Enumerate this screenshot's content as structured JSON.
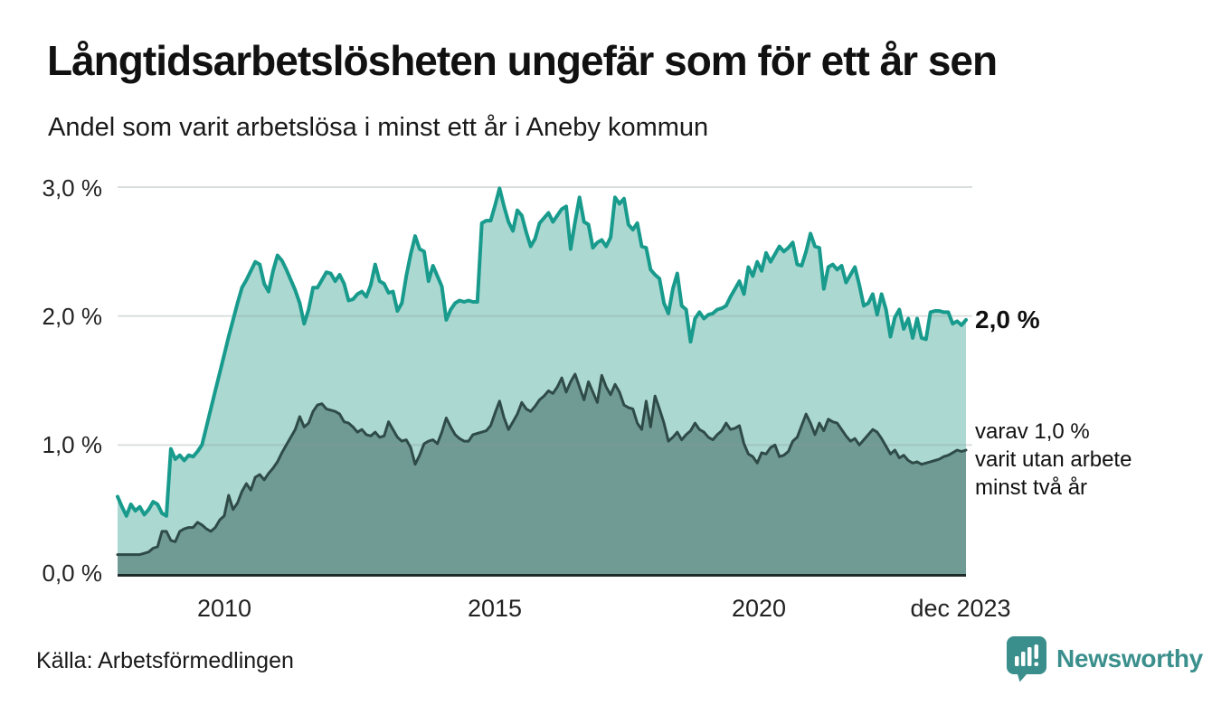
{
  "header": {
    "title": "Långtidsarbetslösheten ungefär som för ett år sen",
    "subtitle": "Andel som varit arbetslösa i minst ett år i Aneby kommun"
  },
  "chart_data": {
    "type": "area",
    "title": "Långtidsarbetslösheten ungefär som för ett år sen",
    "subtitle": "Andel som varit arbetslösa i minst ett år i Aneby kommun",
    "x_start": "jan 2008",
    "x_end": "dec 2023",
    "x_tick_labels": [
      "2010",
      "2015",
      "2020",
      "dec 2023"
    ],
    "y_tick_labels": [
      "0,0 %",
      "1,0 %",
      "2,0 %",
      "3,0 %"
    ],
    "ylim": [
      0,
      3.0
    ],
    "grid": "horizontal",
    "legend_position": "right-annotations",
    "frequency": "monthly",
    "series": [
      {
        "name": "minst ett år",
        "line_color": "#189B8C",
        "fill_color": "#ACD8D2",
        "end_value_label": "2,0 %",
        "values": [
          0.6,
          0.52,
          0.45,
          0.54,
          0.49,
          0.52,
          0.46,
          0.5,
          0.56,
          0.54,
          0.47,
          0.45,
          0.97,
          0.89,
          0.92,
          0.88,
          0.92,
          0.91,
          0.95,
          1.0,
          1.14,
          1.28,
          1.42,
          1.56,
          1.7,
          1.84,
          1.97,
          2.1,
          2.22,
          2.28,
          2.35,
          2.42,
          2.4,
          2.25,
          2.19,
          2.35,
          2.47,
          2.43,
          2.36,
          2.28,
          2.2,
          2.1,
          1.94,
          2.05,
          2.22,
          2.22,
          2.28,
          2.34,
          2.33,
          2.27,
          2.32,
          2.25,
          2.12,
          2.13,
          2.17,
          2.19,
          2.15,
          2.24,
          2.4,
          2.27,
          2.25,
          2.18,
          2.19,
          2.04,
          2.1,
          2.31,
          2.48,
          2.62,
          2.52,
          2.5,
          2.27,
          2.39,
          2.31,
          2.23,
          1.97,
          2.05,
          2.1,
          2.12,
          2.11,
          2.12,
          2.11,
          2.11,
          2.72,
          2.74,
          2.74,
          2.86,
          2.99,
          2.85,
          2.73,
          2.66,
          2.82,
          2.78,
          2.65,
          2.54,
          2.6,
          2.72,
          2.76,
          2.8,
          2.73,
          2.78,
          2.83,
          2.85,
          2.52,
          2.73,
          2.92,
          2.73,
          2.71,
          2.53,
          2.57,
          2.59,
          2.54,
          2.61,
          2.92,
          2.87,
          2.91,
          2.71,
          2.67,
          2.72,
          2.54,
          2.53,
          2.36,
          2.32,
          2.29,
          2.1,
          2.02,
          2.21,
          2.33,
          2.08,
          2.05,
          1.8,
          1.98,
          2.03,
          1.98,
          2.01,
          2.02,
          2.05,
          2.06,
          2.08,
          2.15,
          2.21,
          2.27,
          2.17,
          2.38,
          2.31,
          2.42,
          2.35,
          2.49,
          2.42,
          2.48,
          2.54,
          2.5,
          2.53,
          2.57,
          2.4,
          2.39,
          2.5,
          2.64,
          2.54,
          2.53,
          2.21,
          2.38,
          2.4,
          2.36,
          2.39,
          2.26,
          2.32,
          2.38,
          2.24,
          2.08,
          2.1,
          2.17,
          2.01,
          2.17,
          2.05,
          1.84,
          1.99,
          2.05,
          1.9,
          1.98,
          1.83,
          1.98,
          1.83,
          1.82,
          2.03,
          2.04,
          2.04,
          2.03,
          2.03,
          1.94,
          1.96,
          1.93,
          1.97
        ]
      },
      {
        "name": "minst två år",
        "line_color": "#2F4B47",
        "fill_color": "#709B95",
        "end_value_label": "varav 1,0 %",
        "values": [
          0.15,
          0.15,
          0.15,
          0.15,
          0.15,
          0.15,
          0.16,
          0.17,
          0.2,
          0.21,
          0.33,
          0.33,
          0.26,
          0.25,
          0.33,
          0.35,
          0.36,
          0.36,
          0.4,
          0.38,
          0.35,
          0.33,
          0.36,
          0.42,
          0.45,
          0.61,
          0.5,
          0.55,
          0.64,
          0.7,
          0.65,
          0.75,
          0.77,
          0.73,
          0.78,
          0.82,
          0.87,
          0.94,
          1.0,
          1.06,
          1.12,
          1.22,
          1.14,
          1.17,
          1.26,
          1.31,
          1.32,
          1.28,
          1.27,
          1.26,
          1.24,
          1.18,
          1.17,
          1.14,
          1.1,
          1.12,
          1.08,
          1.07,
          1.1,
          1.06,
          1.07,
          1.18,
          1.12,
          1.06,
          1.03,
          1.04,
          0.98,
          0.85,
          0.92,
          1.01,
          1.03,
          1.04,
          1.01,
          1.1,
          1.21,
          1.14,
          1.08,
          1.05,
          1.03,
          1.03,
          1.08,
          1.09,
          1.1,
          1.11,
          1.15,
          1.25,
          1.34,
          1.21,
          1.12,
          1.18,
          1.24,
          1.33,
          1.28,
          1.26,
          1.3,
          1.35,
          1.38,
          1.42,
          1.4,
          1.45,
          1.52,
          1.41,
          1.49,
          1.55,
          1.45,
          1.35,
          1.49,
          1.41,
          1.33,
          1.54,
          1.45,
          1.39,
          1.47,
          1.41,
          1.31,
          1.29,
          1.28,
          1.17,
          1.12,
          1.34,
          1.14,
          1.38,
          1.28,
          1.17,
          1.03,
          1.06,
          1.1,
          1.04,
          1.08,
          1.11,
          1.17,
          1.12,
          1.1,
          1.06,
          1.04,
          1.08,
          1.11,
          1.17,
          1.12,
          1.13,
          1.15,
          1.01,
          0.93,
          0.91,
          0.86,
          0.94,
          0.93,
          0.98,
          1.0,
          0.91,
          0.92,
          0.95,
          1.03,
          1.06,
          1.15,
          1.24,
          1.17,
          1.08,
          1.17,
          1.11,
          1.2,
          1.18,
          1.17,
          1.12,
          1.07,
          1.03,
          1.05,
          1.0,
          1.04,
          1.08,
          1.12,
          1.1,
          1.05,
          0.99,
          0.93,
          0.96,
          0.9,
          0.92,
          0.88,
          0.86,
          0.87,
          0.85,
          0.86,
          0.87,
          0.88,
          0.89,
          0.91,
          0.92,
          0.94,
          0.96,
          0.95,
          0.96
        ]
      }
    ],
    "end_labels": {
      "primary": "2,0 %",
      "secondary": [
        "varav 1,0 %",
        "varit utan arbete",
        "minst två år"
      ]
    }
  },
  "footer": {
    "source": "Källa: Arbetsförmedlingen",
    "brand": "Newsworthy"
  },
  "colors": {
    "accent_teal": "#189B8C",
    "light_fill": "#ACD8D2",
    "dark_line": "#2F4B47",
    "dark_fill": "#709B95",
    "grid": "#8A9A98",
    "baseline": "#1E2B29",
    "brand_teal": "#3A8F8C",
    "text": "#111111"
  }
}
